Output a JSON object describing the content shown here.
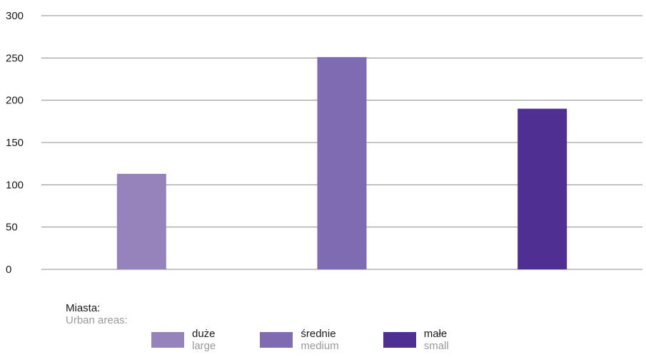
{
  "chart_data": {
    "type": "bar",
    "categories": [
      "duże",
      "średnie",
      "małe"
    ],
    "categories_en": [
      "large",
      "medium",
      "small"
    ],
    "values": [
      113,
      251,
      190
    ],
    "colors": [
      "#9683bb",
      "#7e6bb1",
      "#4f2f92"
    ],
    "ylim": [
      0,
      300
    ],
    "yticks": [
      0,
      50,
      100,
      150,
      200,
      250,
      300
    ],
    "grid": true,
    "legend": {
      "placement": "bottom",
      "title_pl": "Miasta:",
      "title_en": "Urban areas:"
    }
  }
}
